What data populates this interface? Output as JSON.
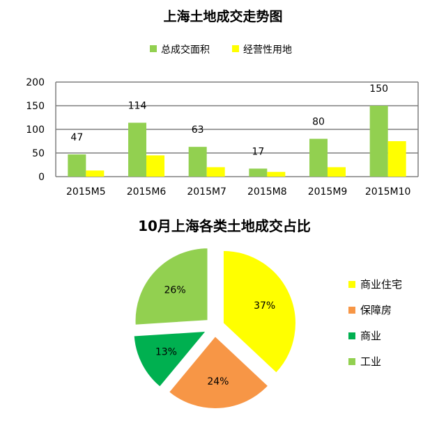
{
  "chart_data": [
    {
      "type": "bar",
      "title": "上海土地成交走势图",
      "categories": [
        "2015M5",
        "2015M6",
        "2015M7",
        "2015M8",
        "2015M9",
        "2015M10"
      ],
      "series": [
        {
          "name": "总成交面积",
          "values": [
            47,
            114,
            63,
            17,
            80,
            150
          ],
          "color": "#92d050"
        },
        {
          "name": "经营性用地",
          "values": [
            13,
            45,
            20,
            10,
            20,
            75
          ],
          "color": "#ffff00"
        }
      ],
      "data_labels": [
        "47",
        "114",
        "63",
        "17",
        "80",
        "150"
      ],
      "ylim": [
        0,
        200
      ],
      "yticks": [
        "0",
        "50",
        "100",
        "150",
        "200"
      ],
      "grid": true,
      "legend_position": "top"
    },
    {
      "type": "pie",
      "title": "10月上海各类土地成交占比",
      "labels": [
        "商业住宅",
        "保障房",
        "商业",
        "工业"
      ],
      "values": [
        37,
        24,
        13,
        26
      ],
      "value_labels": [
        "37%",
        "24%",
        "13%",
        "26%"
      ],
      "colors": [
        "#ffff00",
        "#f79646",
        "#00b050",
        "#92d050"
      ],
      "legend_position": "right"
    }
  ]
}
